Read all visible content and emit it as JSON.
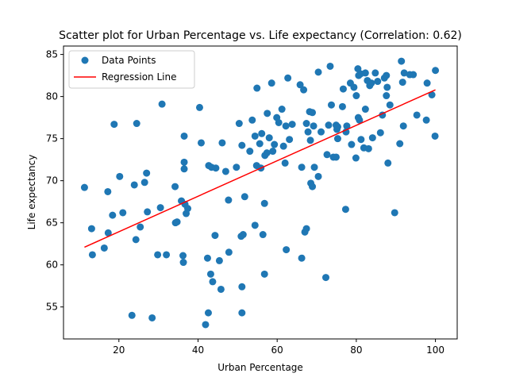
{
  "chart_data": {
    "type": "scatter",
    "title": "Scatter plot for Urban Percentage vs. Life expectancy (Correlation: 0.62)",
    "xlabel": "Urban Percentage",
    "ylabel": "Life expectancy",
    "xlim": [
      6.0,
      105.5
    ],
    "ylim": [
      51.2,
      86.0
    ],
    "xticks": [
      20,
      40,
      60,
      80,
      100
    ],
    "yticks": [
      55,
      60,
      65,
      70,
      75,
      80,
      85
    ],
    "grid": false,
    "legend_position": "top-left",
    "series": [
      {
        "name": "Data Points",
        "kind": "scatter",
        "color": "#1f77b4",
        "points": [
          [
            11.3,
            69.2
          ],
          [
            13.1,
            64.3
          ],
          [
            13.3,
            61.2
          ],
          [
            16.3,
            62.0
          ],
          [
            17.2,
            68.7
          ],
          [
            17.3,
            63.8
          ],
          [
            18.4,
            65.9
          ],
          [
            18.8,
            76.7
          ],
          [
            20.2,
            70.5
          ],
          [
            21.0,
            66.2
          ],
          [
            23.3,
            54.0
          ],
          [
            23.9,
            69.5
          ],
          [
            24.3,
            63.0
          ],
          [
            24.5,
            76.8
          ],
          [
            25.4,
            64.5
          ],
          [
            26.5,
            69.8
          ],
          [
            27.0,
            70.9
          ],
          [
            27.2,
            66.3
          ],
          [
            28.4,
            53.7
          ],
          [
            29.8,
            61.2
          ],
          [
            30.5,
            66.8
          ],
          [
            30.9,
            79.1
          ],
          [
            32.0,
            61.2
          ],
          [
            34.2,
            69.3
          ],
          [
            34.3,
            65.0
          ],
          [
            34.7,
            65.1
          ],
          [
            35.8,
            67.6
          ],
          [
            36.2,
            61.1
          ],
          [
            36.3,
            60.3
          ],
          [
            36.5,
            72.2
          ],
          [
            36.5,
            71.4
          ],
          [
            36.5,
            75.3
          ],
          [
            36.7,
            67.2
          ],
          [
            37.0,
            66.1
          ],
          [
            37.4,
            66.7
          ],
          [
            40.4,
            78.7
          ],
          [
            40.8,
            74.5
          ],
          [
            41.9,
            52.9
          ],
          [
            42.4,
            60.8
          ],
          [
            42.6,
            54.3
          ],
          [
            42.7,
            71.8
          ],
          [
            43.4,
            71.6
          ],
          [
            43.2,
            58.9
          ],
          [
            43.7,
            58.0
          ],
          [
            44.3,
            63.5
          ],
          [
            44.5,
            71.5
          ],
          [
            45.4,
            60.5
          ],
          [
            45.8,
            57.1
          ],
          [
            46.1,
            74.5
          ],
          [
            47.0,
            71.1
          ],
          [
            47.8,
            61.5
          ],
          [
            47.7,
            67.7
          ],
          [
            49.7,
            71.6
          ],
          [
            50.4,
            76.8
          ],
          [
            50.9,
            63.4
          ],
          [
            51.1,
            54.3
          ],
          [
            51.1,
            57.4
          ],
          [
            51.1,
            74.2
          ],
          [
            51.4,
            63.6
          ],
          [
            51.8,
            68.1
          ],
          [
            53.1,
            73.5
          ],
          [
            53.7,
            77.2
          ],
          [
            54.4,
            75.3
          ],
          [
            54.4,
            64.7
          ],
          [
            54.8,
            71.8
          ],
          [
            54.9,
            81.0
          ],
          [
            55.6,
            74.4
          ],
          [
            55.9,
            71.5
          ],
          [
            56.1,
            75.6
          ],
          [
            56.4,
            63.6
          ],
          [
            56.8,
            67.3
          ],
          [
            56.8,
            58.9
          ],
          [
            56.9,
            73.0
          ],
          [
            57.4,
            73.3
          ],
          [
            57.5,
            78.0
          ],
          [
            58.0,
            75.1
          ],
          [
            58.6,
            81.6
          ],
          [
            58.9,
            73.5
          ],
          [
            59.3,
            74.3
          ],
          [
            59.9,
            77.5
          ],
          [
            60.4,
            76.9
          ],
          [
            61.2,
            78.5
          ],
          [
            61.6,
            74.1
          ],
          [
            62.0,
            72.1
          ],
          [
            62.2,
            76.5
          ],
          [
            62.3,
            61.8
          ],
          [
            62.7,
            82.2
          ],
          [
            63.1,
            74.9
          ],
          [
            63.8,
            76.7
          ],
          [
            65.8,
            81.4
          ],
          [
            66.2,
            71.6
          ],
          [
            66.2,
            60.8
          ],
          [
            66.7,
            80.8
          ],
          [
            67.0,
            63.9
          ],
          [
            67.4,
            64.3
          ],
          [
            67.4,
            76.8
          ],
          [
            67.8,
            75.8
          ],
          [
            68.2,
            78.2
          ],
          [
            68.4,
            74.8
          ],
          [
            68.5,
            69.7
          ],
          [
            68.9,
            69.3
          ],
          [
            68.9,
            78.1
          ],
          [
            69.2,
            76.5
          ],
          [
            69.4,
            71.6
          ],
          [
            70.4,
            82.9
          ],
          [
            70.4,
            70.5
          ],
          [
            71.1,
            75.8
          ],
          [
            72.3,
            58.5
          ],
          [
            72.6,
            73.1
          ],
          [
            73.0,
            76.6
          ],
          [
            73.4,
            83.6
          ],
          [
            73.7,
            79.0
          ],
          [
            74.2,
            72.8
          ],
          [
            74.9,
            72.8
          ],
          [
            74.9,
            76.6
          ],
          [
            75.1,
            76.1
          ],
          [
            75.3,
            75.0
          ],
          [
            75.3,
            76.4
          ],
          [
            76.5,
            78.8
          ],
          [
            76.7,
            80.9
          ],
          [
            77.3,
            66.6
          ],
          [
            77.4,
            75.8
          ],
          [
            77.6,
            76.5
          ],
          [
            78.5,
            81.6
          ],
          [
            78.8,
            74.3
          ],
          [
            79.4,
            81.1
          ],
          [
            79.9,
            72.7
          ],
          [
            80.0,
            80.1
          ],
          [
            80.4,
            83.3
          ],
          [
            80.5,
            77.5
          ],
          [
            80.6,
            82.5
          ],
          [
            80.8,
            77.2
          ],
          [
            81.1,
            82.7
          ],
          [
            81.2,
            74.9
          ],
          [
            81.9,
            73.9
          ],
          [
            82.3,
            82.8
          ],
          [
            82.3,
            78.5
          ],
          [
            82.8,
            81.9
          ],
          [
            83.1,
            73.8
          ],
          [
            83.4,
            81.3
          ],
          [
            83.8,
            81.6
          ],
          [
            84.1,
            75.1
          ],
          [
            84.8,
            82.8
          ],
          [
            85.4,
            81.8
          ],
          [
            86.1,
            75.7
          ],
          [
            86.6,
            77.8
          ],
          [
            87.1,
            82.2
          ],
          [
            87.6,
            82.5
          ],
          [
            87.6,
            80.1
          ],
          [
            87.8,
            81.1
          ],
          [
            88.0,
            72.1
          ],
          [
            88.5,
            79.0
          ],
          [
            89.7,
            66.2
          ],
          [
            91.0,
            74.4
          ],
          [
            91.4,
            84.2
          ],
          [
            91.7,
            81.7
          ],
          [
            91.9,
            76.5
          ],
          [
            92.1,
            82.8
          ],
          [
            93.5,
            82.6
          ],
          [
            94.4,
            82.6
          ],
          [
            95.3,
            77.8
          ],
          [
            97.7,
            77.2
          ],
          [
            97.9,
            81.6
          ],
          [
            99.1,
            80.2
          ],
          [
            99.9,
            75.3
          ],
          [
            100.0,
            83.1
          ]
        ]
      },
      {
        "name": "Regression Line",
        "kind": "line",
        "color": "#ff0000",
        "points": [
          [
            11.3,
            62.1
          ],
          [
            100.0,
            80.8
          ]
        ]
      }
    ]
  }
}
